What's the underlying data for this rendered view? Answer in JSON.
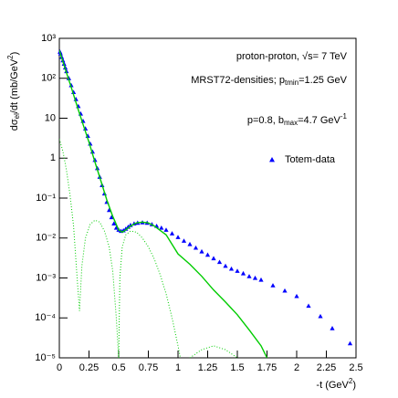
{
  "chart_data": {
    "type": "scatter",
    "ylog": true,
    "xlim": [
      0,
      2.5
    ],
    "ylim": [
      1e-05,
      1000
    ],
    "xticks": [
      0,
      0.25,
      0.5,
      0.75,
      1,
      1.25,
      1.5,
      1.75,
      2,
      2.25,
      2.5
    ],
    "yticks": [
      {
        "value": 1e-05,
        "label": "10⁻⁵"
      },
      {
        "value": 0.0001,
        "label": "10⁻⁴"
      },
      {
        "value": 0.001,
        "label": "10⁻³"
      },
      {
        "value": 0.01,
        "label": "10⁻²"
      },
      {
        "value": 0.1,
        "label": "10⁻¹"
      },
      1,
      10,
      {
        "value": 100,
        "label": "10²"
      },
      {
        "value": 1000,
        "label": "10³"
      }
    ],
    "x_label": [
      "-t (GeV",
      "2",
      ")"
    ],
    "y_label": [
      "dσ",
      "el",
      "/dt (mb/GeV",
      "2",
      ")"
    ],
    "annotations": [
      [
        "proton-proton, √s= 7 TeV"
      ],
      [
        "MRST72-densities; p",
        "tmin",
        "=1.25 GeV"
      ],
      [
        "p=0.8, b",
        "max",
        "=4.7 GeV",
        "-1"
      ]
    ],
    "legend": "right",
    "series": [
      {
        "name": "Totem-data",
        "type": "scatter",
        "color": "#0000ff",
        "x": [
          0.005,
          0.01,
          0.02,
          0.03,
          0.04,
          0.05,
          0.06,
          0.08,
          0.1,
          0.12,
          0.14,
          0.16,
          0.18,
          0.2,
          0.22,
          0.24,
          0.26,
          0.28,
          0.3,
          0.32,
          0.34,
          0.36,
          0.38,
          0.4,
          0.42,
          0.44,
          0.46,
          0.48,
          0.5,
          0.52,
          0.54,
          0.56,
          0.58,
          0.6,
          0.63,
          0.66,
          0.7,
          0.74,
          0.78,
          0.82,
          0.86,
          0.9,
          0.95,
          1.0,
          1.05,
          1.1,
          1.15,
          1.2,
          1.25,
          1.3,
          1.35,
          1.4,
          1.45,
          1.5,
          1.55,
          1.6,
          1.65,
          1.7,
          1.8,
          1.9,
          2.0,
          2.1,
          2.2,
          2.3,
          2.45
        ],
        "values": [
          460,
          420,
          340,
          280,
          230,
          185,
          150,
          100,
          67,
          45,
          30,
          20,
          13,
          8.5,
          5.5,
          3.6,
          2.3,
          1.45,
          0.9,
          0.56,
          0.34,
          0.21,
          0.13,
          0.08,
          0.05,
          0.033,
          0.023,
          0.018,
          0.016,
          0.015,
          0.0155,
          0.017,
          0.019,
          0.021,
          0.023,
          0.024,
          0.0245,
          0.024,
          0.022,
          0.02,
          0.018,
          0.016,
          0.013,
          0.0105,
          0.0085,
          0.007,
          0.0057,
          0.0046,
          0.0038,
          0.0031,
          0.0025,
          0.002,
          0.0017,
          0.0015,
          0.0013,
          0.0011,
          0.001,
          0.0009,
          0.00065,
          0.00048,
          0.00035,
          0.0002,
          0.00011,
          5.5e-05,
          2.3e-05
        ]
      },
      {
        "type": "line",
        "color": "#00cc00",
        "x": [
          0,
          0.05,
          0.1,
          0.15,
          0.2,
          0.25,
          0.3,
          0.35,
          0.4,
          0.45,
          0.5,
          0.53,
          0.56,
          0.6,
          0.65,
          0.7,
          0.75,
          0.8,
          0.9,
          1.0,
          1.1,
          1.2,
          1.3,
          1.4,
          1.5,
          1.6,
          1.7,
          1.75
        ],
        "values": [
          500,
          170,
          60,
          20,
          7,
          2.5,
          0.8,
          0.27,
          0.09,
          0.035,
          0.016,
          0.014,
          0.016,
          0.02,
          0.024,
          0.025,
          0.024,
          0.02,
          0.012,
          0.004,
          0.0022,
          0.0011,
          0.0005,
          0.00025,
          0.00012,
          5e-05,
          2e-05,
          1e-05
        ]
      },
      {
        "type": "line",
        "style": "dotted",
        "color": "#00cc00",
        "x": [
          0,
          0.03,
          0.06,
          0.09,
          0.12,
          0.15,
          0.17,
          0.19,
          0.22,
          0.26,
          0.3,
          0.34,
          0.38,
          0.42,
          0.45,
          0.48,
          0.5
        ],
        "values": [
          3,
          1.5,
          0.5,
          0.12,
          0.02,
          0.001,
          0.00015,
          0.002,
          0.01,
          0.022,
          0.028,
          0.025,
          0.015,
          0.006,
          0.0015,
          0.0001,
          1e-05
        ]
      },
      {
        "type": "line",
        "style": "dotted",
        "color": "#00cc00",
        "x": [
          0.5,
          0.51,
          0.53,
          0.56,
          0.6,
          0.65,
          0.7,
          0.75,
          0.8,
          0.85,
          0.9,
          0.95,
          1.0,
          1.02
        ],
        "values": [
          1e-05,
          0.001,
          0.006,
          0.012,
          0.015,
          0.014,
          0.01,
          0.006,
          0.003,
          0.0012,
          0.0004,
          0.0001,
          2e-05,
          1e-05
        ]
      },
      {
        "type": "line",
        "style": "dotted",
        "color": "#00cc00",
        "x": [
          1.1,
          1.2,
          1.3,
          1.4,
          1.5
        ],
        "values": [
          1e-05,
          1.6e-05,
          2e-05,
          1.6e-05,
          1e-05
        ]
      }
    ]
  }
}
